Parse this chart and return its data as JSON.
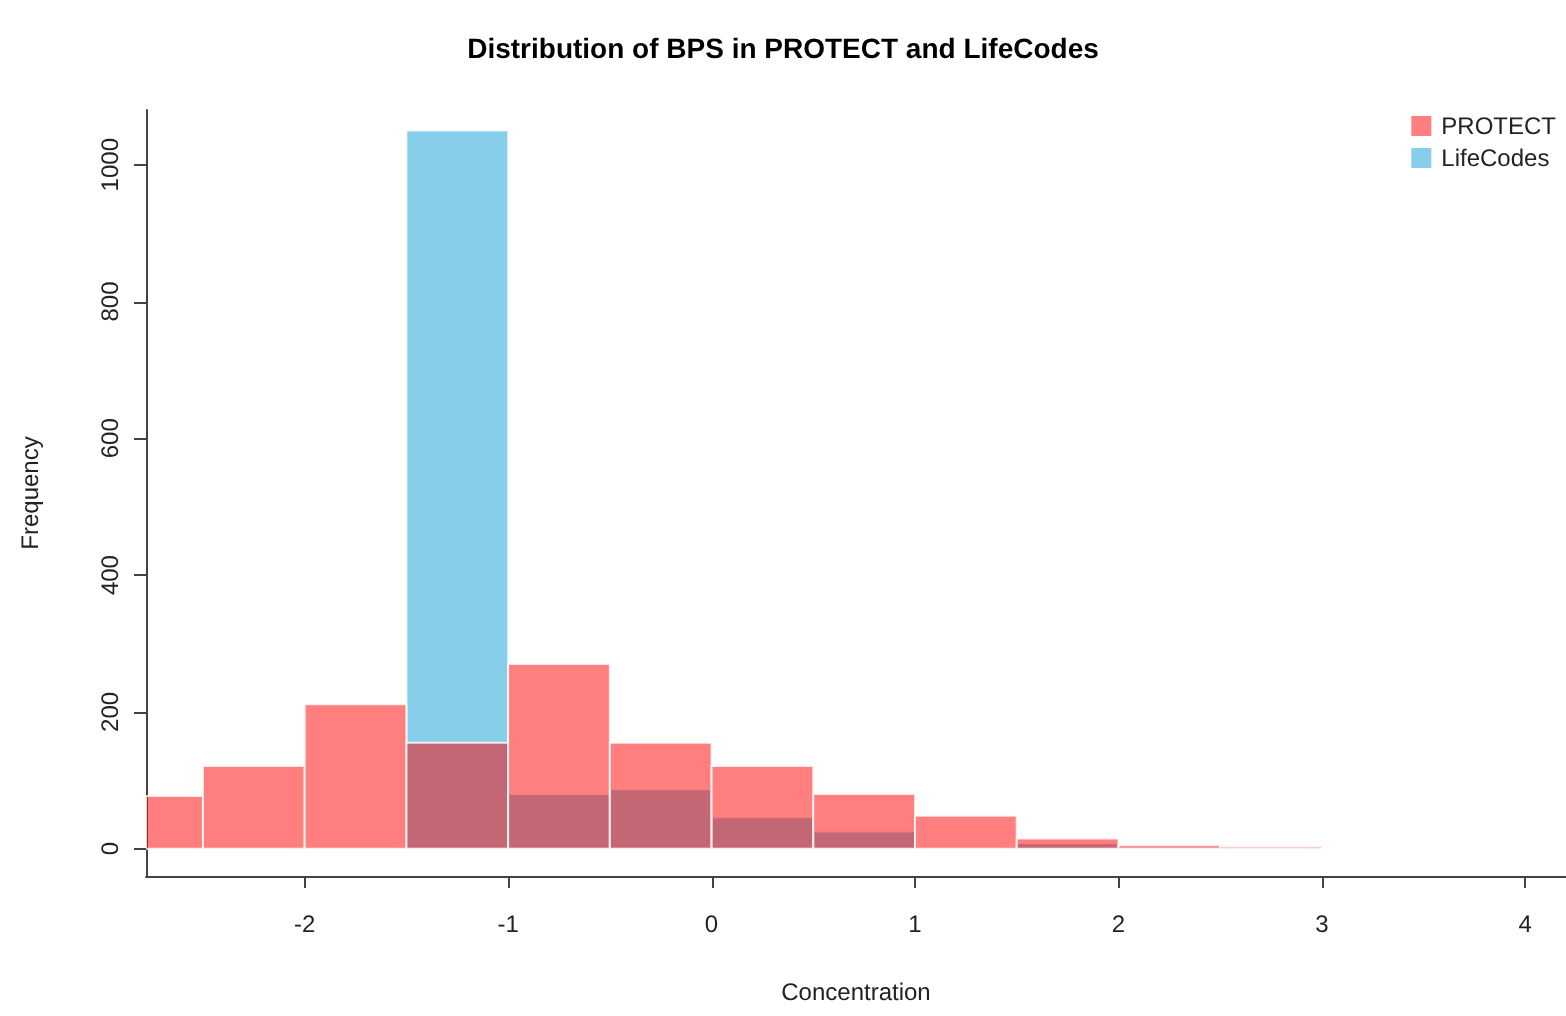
{
  "chart_data": {
    "type": "histogram",
    "title": "Distribution of BPS in PROTECT and LifeCodes",
    "xlabel": "Concentration",
    "ylabel": "Frequency",
    "xlim": [
      -2.78,
      4.2
    ],
    "xticks": [
      -2,
      -1,
      0,
      1,
      2,
      3,
      4
    ],
    "ylim": [
      -40,
      1080
    ],
    "yticks": [
      0,
      200,
      400,
      600,
      800,
      1000
    ],
    "legend": "top right",
    "bins": [
      -2.78,
      -2.5,
      -2,
      -1.5,
      -1,
      -0.5,
      0,
      0.5,
      1,
      1.5,
      2,
      2.5,
      3
    ],
    "series": [
      {
        "name": "LifeCodes",
        "color": "#87ceeb",
        "values": [
          null,
          null,
          null,
          1050,
          80,
          87,
          46,
          25,
          null,
          8,
          null,
          null
        ]
      },
      {
        "name": "PROTECT",
        "color": "#ff7f7f",
        "values": [
          77,
          121,
          211,
          155,
          270,
          155,
          121,
          80,
          48,
          15,
          5,
          3
        ]
      }
    ]
  }
}
